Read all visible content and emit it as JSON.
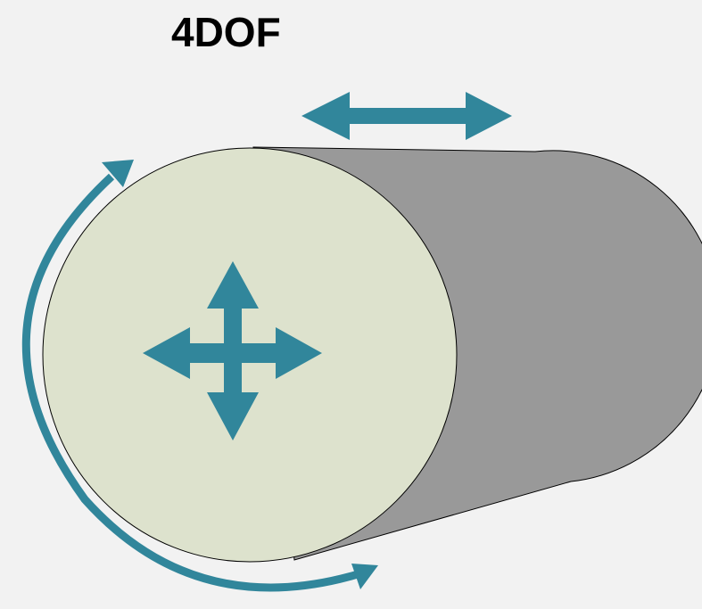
{
  "title": "4DOF",
  "colors": {
    "background": "#f2f2f2",
    "cylinder_body": "#999999",
    "cylinder_face": "#dde2cd",
    "arrow": "#31869b",
    "outline": "#000000"
  },
  "icons": {
    "axial_translation": "double-arrow-horizontal-icon",
    "planar_translation": "four-way-arrow-icon",
    "rotation": "curved-rotation-arrow-icon"
  }
}
